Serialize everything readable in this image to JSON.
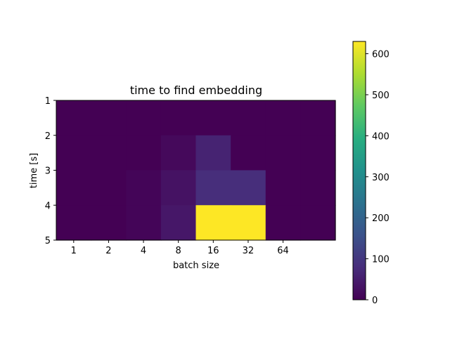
{
  "chart_data": {
    "type": "heatmap",
    "title": "time to find embedding",
    "xlabel": "batch size",
    "ylabel": "time [s]",
    "x_tick_labels": [
      "1",
      "2",
      "4",
      "8",
      "16",
      "32",
      "64"
    ],
    "y_tick_labels": [
      "1",
      "2",
      "3",
      "4",
      "5"
    ],
    "grid": false,
    "colormap": "viridis",
    "colorbar": {
      "min": 0,
      "max": 630,
      "ticks": [
        "0",
        "100",
        "200",
        "300",
        "400",
        "500",
        "600"
      ],
      "tick_values": [
        0,
        100,
        200,
        300,
        400,
        500,
        600
      ]
    },
    "n_cols": 8,
    "n_rows": 4,
    "values": [
      [
        0,
        0,
        0,
        0,
        0,
        0,
        0,
        0
      ],
      [
        0,
        0,
        0,
        15,
        60,
        0,
        0,
        0
      ],
      [
        0,
        0,
        8,
        30,
        80,
        80,
        0,
        0
      ],
      [
        0,
        0,
        8,
        40,
        630,
        630,
        0,
        0
      ]
    ]
  }
}
